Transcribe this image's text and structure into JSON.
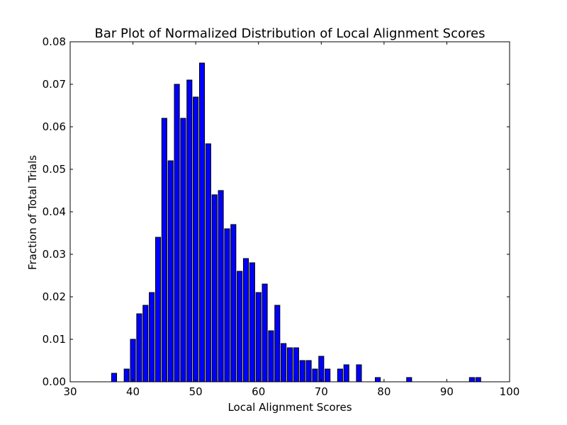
{
  "chart_data": {
    "type": "bar",
    "title": "Bar Plot of Normalized Distribution of Local Alignment Scores",
    "xlabel": "Local Alignment Scores",
    "ylabel": "Fraction of Total Trials",
    "xlim": [
      30,
      100
    ],
    "ylim": [
      0,
      0.08
    ],
    "xticks": [
      30,
      40,
      50,
      60,
      70,
      80,
      90,
      100
    ],
    "yticks": [
      0.0,
      0.01,
      0.02,
      0.03,
      0.04,
      0.05,
      0.06,
      0.07,
      0.08
    ],
    "xtick_labels": [
      "30",
      "40",
      "50",
      "60",
      "70",
      "80",
      "90",
      "100"
    ],
    "ytick_labels": [
      "0.00",
      "0.01",
      "0.02",
      "0.03",
      "0.04",
      "0.05",
      "0.06",
      "0.07",
      "0.08"
    ],
    "grid": false,
    "bar_color": "#0000ff",
    "bar_edge_color": "#000000",
    "x": [
      37,
      39,
      40,
      41,
      42,
      43,
      44,
      45,
      46,
      47,
      48,
      49,
      50,
      51,
      52,
      53,
      54,
      55,
      56,
      57,
      58,
      59,
      60,
      61,
      62,
      63,
      64,
      65,
      66,
      67,
      68,
      69,
      70,
      71,
      73,
      74,
      76,
      79,
      84,
      94,
      95
    ],
    "values": [
      0.002,
      0.003,
      0.01,
      0.016,
      0.018,
      0.021,
      0.034,
      0.062,
      0.052,
      0.07,
      0.062,
      0.071,
      0.067,
      0.075,
      0.056,
      0.044,
      0.045,
      0.036,
      0.037,
      0.026,
      0.029,
      0.028,
      0.021,
      0.023,
      0.012,
      0.018,
      0.009,
      0.008,
      0.008,
      0.005,
      0.005,
      0.003,
      0.006,
      0.003,
      0.003,
      0.004,
      0.004,
      0.001,
      0.001,
      0.001,
      0.001
    ]
  }
}
